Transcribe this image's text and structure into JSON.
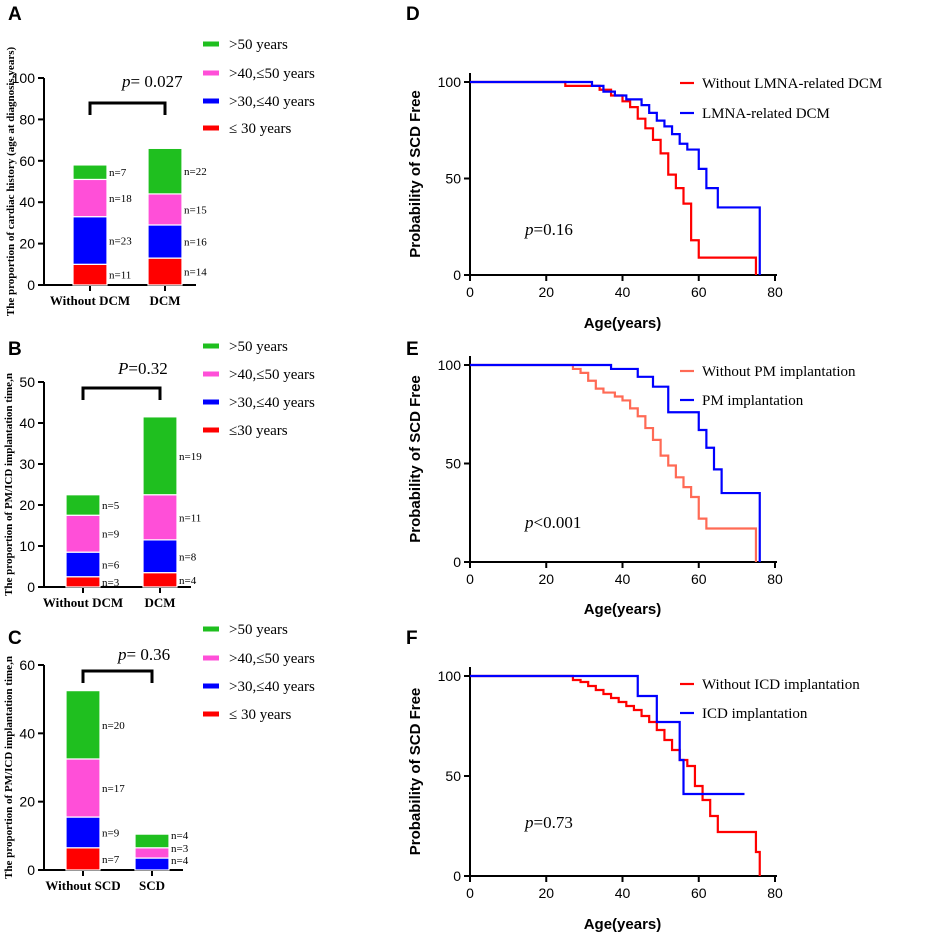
{
  "chart_data": [
    {
      "panel": "A",
      "type": "bar",
      "stacked": true,
      "ylabel": "The proportion of cardiac history (age at diagnosis,years)",
      "ylim": [
        0,
        100
      ],
      "yticks": [
        "0",
        "20",
        "40",
        "60",
        "80",
        "100"
      ],
      "categories": [
        "Without DCM",
        "DCM"
      ],
      "legend": [
        "≤ 30 years",
        ">30,≤40 years",
        ">40,≤50 years",
        ">50 years"
      ],
      "legend_display": [
        ">50 years",
        ">40,≤50 years",
        ">30,≤40 years",
        "≤ 30 years"
      ],
      "series": [
        {
          "name": "≤ 30 years",
          "color": "#ff0000",
          "values": [
            10,
            13
          ],
          "n_labels": [
            "n=11",
            "n=14"
          ]
        },
        {
          "name": ">30,≤40 years",
          "color": "#0000ff",
          "values": [
            23,
            16
          ],
          "n_labels": [
            "n=23",
            "n=16"
          ]
        },
        {
          "name": ">40,≤50 years",
          "color": "#ff4fd8",
          "values": [
            18,
            15
          ],
          "n_labels": [
            "n=18",
            "n=15"
          ]
        },
        {
          "name": ">50 years",
          "color": "#1fbf1f",
          "values": [
            7,
            22
          ],
          "n_labels": [
            "n=7",
            "n=22"
          ]
        }
      ],
      "p_prefix": "p",
      "p_value": "= 0.027"
    },
    {
      "panel": "B",
      "type": "bar",
      "stacked": true,
      "ylabel": "The proportion of PM/ICD implantation time,n",
      "ylim": [
        0,
        50
      ],
      "yticks": [
        "0",
        "10",
        "20",
        "30",
        "40",
        "50"
      ],
      "categories": [
        "Without DCM",
        "DCM"
      ],
      "legend_display": [
        ">50 years",
        ">40,≤50 years",
        ">30,≤40 years",
        "≤30 years"
      ],
      "series": [
        {
          "name": "≤30 years",
          "color": "#ff0000",
          "values": [
            2.5,
            3.5
          ],
          "n_labels": [
            "n=3",
            "n=4"
          ]
        },
        {
          "name": ">30,≤40 years",
          "color": "#0000ff",
          "values": [
            6,
            8
          ],
          "n_labels": [
            "n=6",
            "n=8"
          ]
        },
        {
          "name": ">40,≤50 years",
          "color": "#ff4fd8",
          "values": [
            9,
            11
          ],
          "n_labels": [
            "n=9",
            "n=11"
          ]
        },
        {
          "name": ">50 years",
          "color": "#1fbf1f",
          "values": [
            5,
            19
          ],
          "n_labels": [
            "n=5",
            "n=19"
          ]
        }
      ],
      "p_prefix": "P",
      "p_value": "=0.32"
    },
    {
      "panel": "C",
      "type": "bar",
      "stacked": true,
      "ylabel": "The proportion of PM/ICD implantation time,n",
      "ylim": [
        0,
        60
      ],
      "yticks": [
        "0",
        "20",
        "40",
        "60"
      ],
      "categories": [
        "Without SCD",
        "SCD"
      ],
      "legend_display": [
        ">50 years",
        ">40,≤50 years",
        ">30,≤40 years",
        "≤ 30 years"
      ],
      "series": [
        {
          "name": "≤ 30 years",
          "color": "#ff0000",
          "values": [
            6.5,
            0
          ],
          "n_labels": [
            "n=7",
            ""
          ]
        },
        {
          "name": ">30,≤40 years",
          "color": "#0000ff",
          "values": [
            9,
            3.5
          ],
          "n_labels": [
            "n=9",
            "n=4"
          ]
        },
        {
          "name": ">40,≤50 years",
          "color": "#ff4fd8",
          "values": [
            17,
            3
          ],
          "n_labels": [
            "n=17",
            "n=3"
          ]
        },
        {
          "name": ">50 years",
          "color": "#1fbf1f",
          "values": [
            20,
            4
          ],
          "n_labels": [
            "n=20",
            "n=4"
          ]
        }
      ],
      "p_prefix": "p",
      "p_value": "= 0.36"
    },
    {
      "panel": "D",
      "type": "line",
      "subtype": "kaplan-meier",
      "xlabel": "Age(years)",
      "ylabel": "Probability of SCD Free",
      "xlim": [
        0,
        80
      ],
      "ylim": [
        0,
        100
      ],
      "xticks": [
        "0",
        "20",
        "40",
        "60",
        "80"
      ],
      "yticks": [
        "0",
        "50",
        "100"
      ],
      "series": [
        {
          "name": "Without LMNA-related DCM",
          "color": "#ff0000",
          "x": [
            0,
            21,
            25,
            34,
            37,
            40,
            42,
            44,
            46,
            48,
            50,
            52,
            54,
            56,
            58,
            60,
            63,
            75
          ],
          "y": [
            100,
            100,
            98,
            96,
            93,
            90,
            87,
            81,
            76,
            70,
            63,
            52,
            45,
            37,
            18,
            9,
            9,
            0
          ]
        },
        {
          "name": "LMNA-related DCM",
          "color": "#0000ff",
          "x": [
            0,
            28,
            32,
            35,
            38,
            41,
            45,
            47,
            49,
            51,
            53,
            55,
            57,
            60,
            62,
            65,
            70,
            76
          ],
          "y": [
            100,
            100,
            98,
            95,
            93,
            91,
            88,
            84,
            80,
            77,
            73,
            68,
            65,
            55,
            45,
            35,
            35,
            0
          ]
        }
      ],
      "p_prefix": "p",
      "p_value": "=0.16"
    },
    {
      "panel": "E",
      "type": "line",
      "subtype": "kaplan-meier",
      "xlabel": "Age(years)",
      "ylabel": "Probability of SCD Free",
      "xlim": [
        0,
        80
      ],
      "ylim": [
        0,
        100
      ],
      "xticks": [
        "0",
        "20",
        "40",
        "60",
        "80"
      ],
      "yticks": [
        "0",
        "50",
        "100"
      ],
      "series": [
        {
          "name": "Without PM implantation",
          "color": "#ff6a55",
          "x": [
            0,
            21,
            27,
            29,
            31,
            33,
            35,
            38,
            40,
            42,
            44,
            46,
            48,
            50,
            52,
            54,
            56,
            58,
            60,
            62,
            75
          ],
          "y": [
            100,
            100,
            98,
            96,
            92,
            88,
            86,
            84,
            82,
            78,
            74,
            68,
            62,
            54,
            49,
            43,
            38,
            33,
            22,
            17,
            0
          ]
        },
        {
          "name": "PM implantation",
          "color": "#0000ff",
          "x": [
            0,
            31,
            37,
            44,
            48,
            52,
            56,
            60,
            62,
            64,
            66,
            76
          ],
          "y": [
            100,
            100,
            98,
            94,
            89,
            76,
            76,
            67,
            58,
            47,
            35,
            0
          ]
        }
      ],
      "p_prefix": "p",
      "p_value": "<0.001"
    },
    {
      "panel": "F",
      "type": "line",
      "subtype": "kaplan-meier",
      "xlabel": "Age(years)",
      "ylabel": "Probability of SCD Free",
      "xlim": [
        0,
        80
      ],
      "ylim": [
        0,
        100
      ],
      "xticks": [
        "0",
        "20",
        "40",
        "60",
        "80"
      ],
      "yticks": [
        "0",
        "50",
        "100"
      ],
      "series": [
        {
          "name": "Without ICD implantation",
          "color": "#ff0000",
          "x": [
            0,
            21,
            27,
            29,
            31,
            33,
            35,
            37,
            39,
            41,
            43,
            45,
            47,
            49,
            51,
            53,
            55,
            57,
            59,
            61,
            63,
            65,
            75,
            76
          ],
          "y": [
            100,
            100,
            98,
            97,
            95,
            93,
            91,
            89,
            87,
            85,
            83,
            80,
            77,
            73,
            68,
            63,
            58,
            55,
            45,
            38,
            30,
            22,
            12,
            0
          ]
        },
        {
          "name": "ICD implantation",
          "color": "#0000ff",
          "x": [
            0,
            42,
            44,
            47,
            49,
            52,
            55,
            56,
            60,
            72
          ],
          "y": [
            100,
            100,
            90,
            90,
            77,
            77,
            58,
            41,
            41,
            41
          ]
        }
      ],
      "p_prefix": "p",
      "p_value": "=0.73"
    }
  ]
}
